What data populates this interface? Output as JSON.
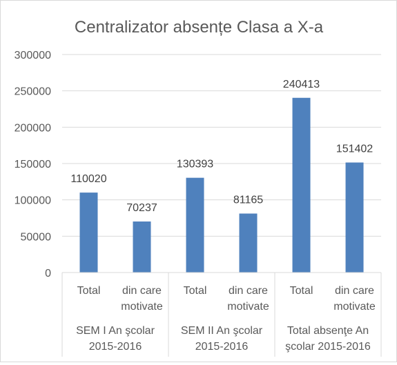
{
  "chart_data": {
    "type": "bar",
    "title": "Centralizator absențe Clasa a X-a",
    "xlabel": "",
    "ylabel": "",
    "ylim": [
      0,
      300000
    ],
    "yticks": [
      0,
      50000,
      100000,
      150000,
      200000,
      250000,
      300000
    ],
    "ytick_labels": [
      "0",
      "50000",
      "100000",
      "150000",
      "200000",
      "250000",
      "300000"
    ],
    "grid": true,
    "legend": "none",
    "bar_color": "#4f81bd",
    "groups": [
      {
        "label_lines": [
          "SEM I An şcolar",
          "2015-2016"
        ],
        "bars": [
          {
            "label_lines": [
              "Total"
            ],
            "value": 110020,
            "value_label": "110020"
          },
          {
            "label_lines": [
              "din care",
              "motivate"
            ],
            "value": 70237,
            "value_label": "70237"
          }
        ]
      },
      {
        "label_lines": [
          "SEM II An şcolar",
          "2015-2016"
        ],
        "bars": [
          {
            "label_lines": [
              "Total"
            ],
            "value": 130393,
            "value_label": "130393"
          },
          {
            "label_lines": [
              "din care",
              "motivate"
            ],
            "value": 81165,
            "value_label": "81165"
          }
        ]
      },
      {
        "label_lines": [
          "Total absenţe An",
          "şcolar 2015-2016"
        ],
        "bars": [
          {
            "label_lines": [
              "Total"
            ],
            "value": 240413,
            "value_label": "240413"
          },
          {
            "label_lines": [
              "din care",
              "motivate"
            ],
            "value": 151402,
            "value_label": "151402"
          }
        ]
      }
    ]
  }
}
